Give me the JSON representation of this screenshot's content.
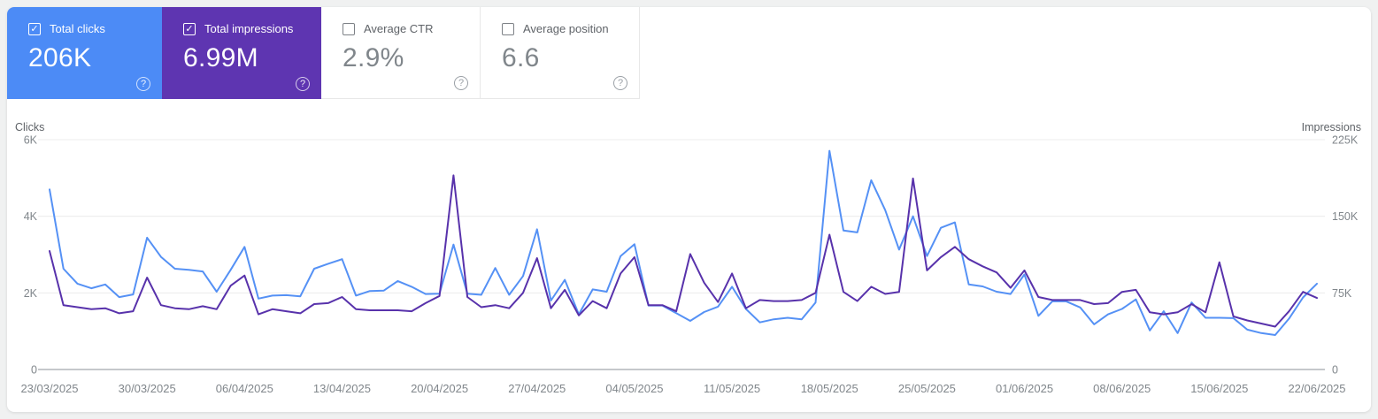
{
  "glyphs": {
    "check": "✓",
    "help": "?"
  },
  "cards": [
    {
      "id": "total-clicks",
      "label": "Total clicks",
      "value": "206K",
      "checked": true,
      "bg": "#4c8bf6"
    },
    {
      "id": "total-impressions",
      "label": "Total impressions",
      "value": "6.99M",
      "checked": true,
      "bg": "#5e35b1"
    },
    {
      "id": "average-ctr",
      "label": "Average CTR",
      "value": "2.9%",
      "checked": false,
      "bg": "#ffffff"
    },
    {
      "id": "average-position",
      "label": "Average position",
      "value": "6.6",
      "checked": false,
      "bg": "#ffffff"
    }
  ],
  "chart_data": {
    "type": "line",
    "x_tick_labels": [
      "23/03/2025",
      "30/03/2025",
      "06/04/2025",
      "13/04/2025",
      "20/04/2025",
      "27/04/2025",
      "04/05/2025",
      "11/05/2025",
      "18/05/2025",
      "25/05/2025",
      "01/06/2025",
      "08/06/2025",
      "15/06/2025",
      "22/06/2025"
    ],
    "x_tick_every_n_points": 7,
    "left_axis": {
      "title": "Clicks",
      "max": 6000,
      "ticks": [
        {
          "label": "6K",
          "value": 6000
        },
        {
          "label": "4K",
          "value": 4000
        },
        {
          "label": "2K",
          "value": 2000
        },
        {
          "label": "0",
          "value": 0
        }
      ]
    },
    "right_axis": {
      "title": "Impressions",
      "max": 225000,
      "ticks": [
        {
          "label": "225K",
          "value": 225000
        },
        {
          "label": "150K",
          "value": 150000
        },
        {
          "label": "75K",
          "value": 75000
        },
        {
          "label": "0",
          "value": 0
        }
      ]
    },
    "series": [
      {
        "name": "Total clicks",
        "axis": "left",
        "color": "#5591f5",
        "values": [
          4700,
          2630,
          2240,
          2120,
          2220,
          1890,
          1960,
          3440,
          2940,
          2630,
          2600,
          2560,
          2030,
          2600,
          3200,
          1850,
          1930,
          1940,
          1910,
          2630,
          2760,
          2880,
          1930,
          2050,
          2060,
          2310,
          2160,
          1970,
          1980,
          3260,
          1980,
          1950,
          2650,
          1950,
          2440,
          3660,
          1800,
          2340,
          1440,
          2090,
          2030,
          2960,
          3270,
          1670,
          1670,
          1470,
          1270,
          1500,
          1640,
          2160,
          1580,
          1230,
          1310,
          1350,
          1310,
          1750,
          5710,
          3630,
          3580,
          4940,
          4160,
          3130,
          4000,
          2960,
          3700,
          3840,
          2220,
          2170,
          2030,
          1970,
          2480,
          1400,
          1780,
          1780,
          1620,
          1180,
          1440,
          1580,
          1830,
          1020,
          1520,
          950,
          1750,
          1350,
          1350,
          1340,
          1040,
          950,
          900,
          1330,
          1880,
          2240
        ]
      },
      {
        "name": "Total impressions",
        "axis": "right",
        "color": "#5832ab",
        "values": [
          116000,
          63000,
          61000,
          59000,
          60000,
          55000,
          57000,
          90000,
          63000,
          60000,
          59000,
          62000,
          59000,
          82000,
          92000,
          54000,
          59000,
          57000,
          55000,
          64000,
          65000,
          71000,
          59000,
          58000,
          58000,
          58000,
          57000,
          65000,
          72000,
          190000,
          71000,
          61000,
          63000,
          60000,
          75000,
          109000,
          60000,
          78000,
          53000,
          67000,
          60000,
          94000,
          110000,
          63000,
          63000,
          57000,
          113000,
          85000,
          66000,
          94000,
          60000,
          68000,
          67000,
          67000,
          68000,
          75000,
          132000,
          76000,
          67000,
          81000,
          74000,
          76000,
          187000,
          97000,
          110000,
          120000,
          108000,
          101000,
          95000,
          80000,
          97000,
          71000,
          68000,
          68000,
          68000,
          64000,
          65000,
          76000,
          78000,
          56000,
          54000,
          56000,
          64000,
          56000,
          105000,
          52000,
          48000,
          45000,
          42000,
          57000,
          76000,
          70000
        ]
      }
    ]
  }
}
